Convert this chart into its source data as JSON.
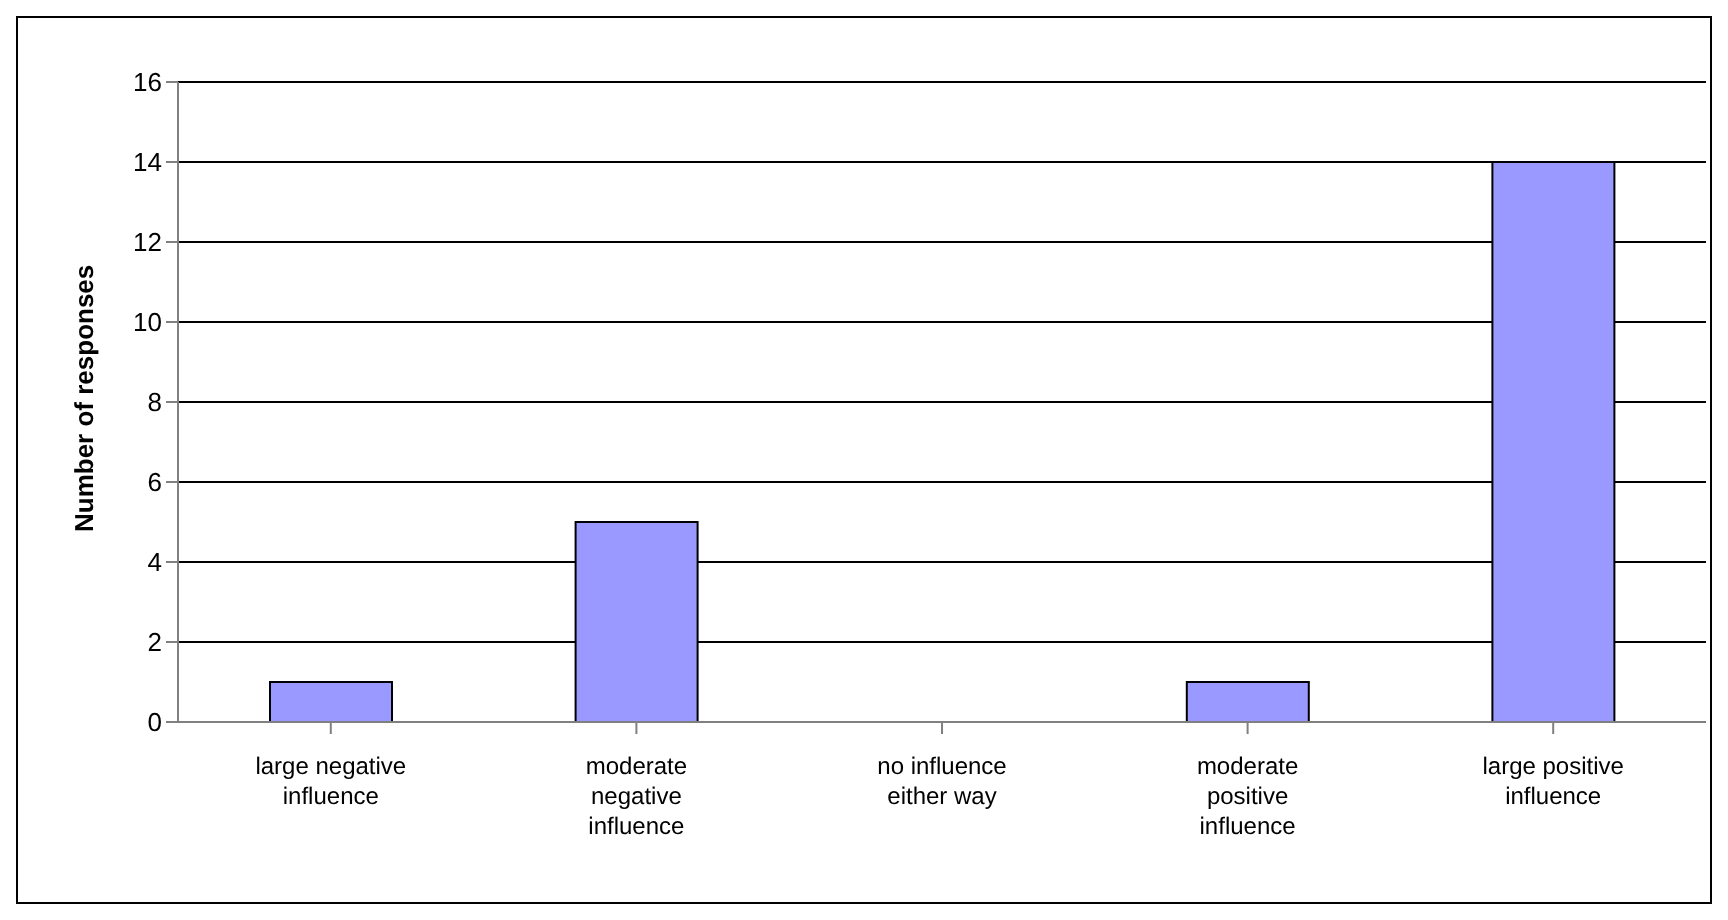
{
  "chart_data": {
    "type": "bar",
    "ylabel": "Number of responses",
    "categories": [
      "large negative influence",
      "moderate negative influence",
      "no influence either way",
      "moderate positive influence",
      "large positive influence"
    ],
    "values": [
      1,
      5,
      0,
      1,
      14
    ],
    "color": "#9999ff",
    "ylim": [
      0,
      16
    ],
    "yticks": [
      0,
      2,
      4,
      6,
      8,
      10,
      12,
      14,
      16
    ],
    "grid": "y"
  }
}
